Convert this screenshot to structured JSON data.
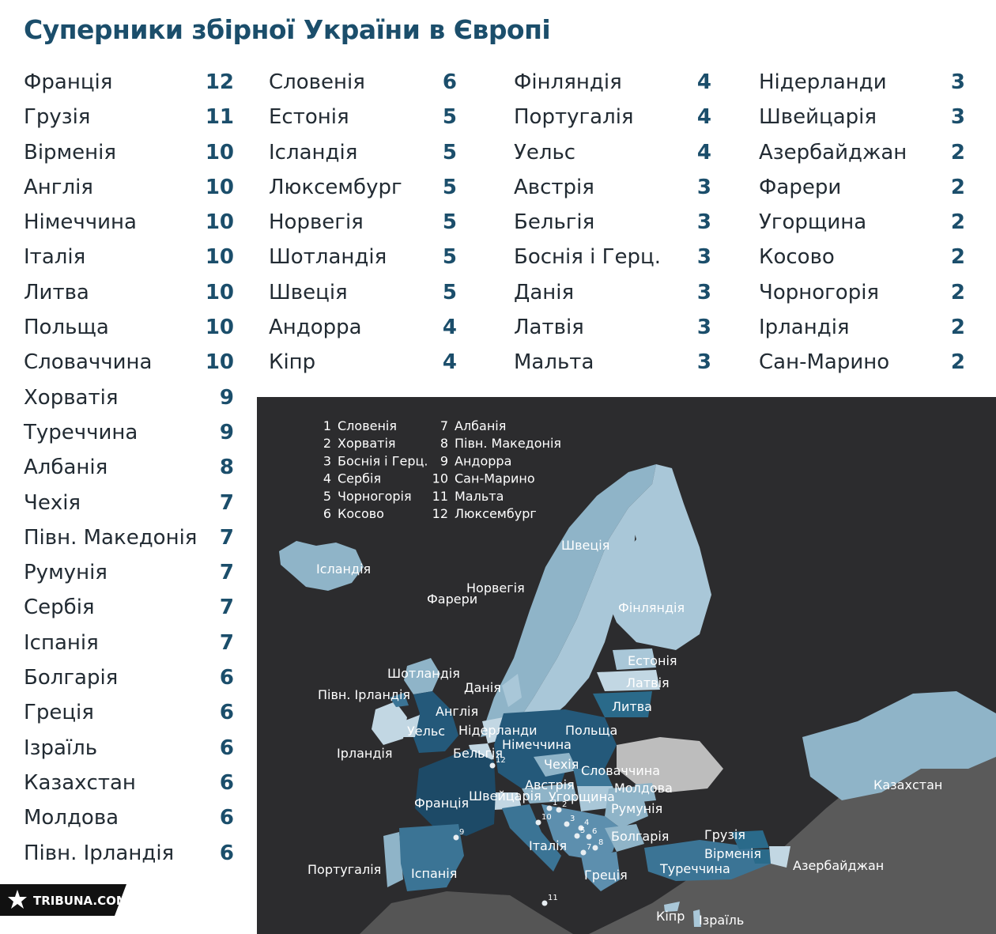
{
  "chart_data": {
    "type": "table",
    "title": "Суперники збірної України в Європі",
    "columns": [
      [
        {
          "name": "Франція",
          "value": 12
        },
        {
          "name": "Грузія",
          "value": 11
        },
        {
          "name": "Вірменія",
          "value": 10
        },
        {
          "name": "Англія",
          "value": 10
        },
        {
          "name": "Німеччина",
          "value": 10
        },
        {
          "name": "Італія",
          "value": 10
        },
        {
          "name": "Литва",
          "value": 10
        },
        {
          "name": "Польща",
          "value": 10
        },
        {
          "name": "Словаччина",
          "value": 10
        },
        {
          "name": "Хорватія",
          "value": 9
        },
        {
          "name": "Туреччина",
          "value": 9
        },
        {
          "name": "Албанія",
          "value": 8
        },
        {
          "name": "Чехія",
          "value": 7
        },
        {
          "name": "Півн. Македонія",
          "value": 7
        },
        {
          "name": "Румунія",
          "value": 7
        },
        {
          "name": "Сербія",
          "value": 7
        },
        {
          "name": "Іспанія",
          "value": 7
        },
        {
          "name": "Болгарія",
          "value": 6
        },
        {
          "name": "Греція",
          "value": 6
        },
        {
          "name": "Ізраїль",
          "value": 6
        },
        {
          "name": "Казахстан",
          "value": 6
        },
        {
          "name": "Молдова",
          "value": 6
        },
        {
          "name": "Півн. Ірландія",
          "value": 6
        }
      ],
      [
        {
          "name": "Словенія",
          "value": 6
        },
        {
          "name": "Естонія",
          "value": 5
        },
        {
          "name": "Ісландія",
          "value": 5
        },
        {
          "name": "Люксембург",
          "value": 5
        },
        {
          "name": "Норвегія",
          "value": 5
        },
        {
          "name": "Шотландія",
          "value": 5
        },
        {
          "name": "Швеція",
          "value": 5
        },
        {
          "name": "Андорра",
          "value": 4
        },
        {
          "name": "Кіпр",
          "value": 4
        }
      ],
      [
        {
          "name": "Фінляндія",
          "value": 4
        },
        {
          "name": "Португалія",
          "value": 4
        },
        {
          "name": "Уельс",
          "value": 4
        },
        {
          "name": "Австрія",
          "value": 3
        },
        {
          "name": "Бельгія",
          "value": 3
        },
        {
          "name": "Боснія і Герц.",
          "value": 3
        },
        {
          "name": "Данія",
          "value": 3
        },
        {
          "name": "Латвія",
          "value": 3
        },
        {
          "name": "Мальта",
          "value": 3
        }
      ],
      [
        {
          "name": "Нідерланди",
          "value": 3
        },
        {
          "name": "Швейцарія",
          "value": 3
        },
        {
          "name": "Азербайджан",
          "value": 2
        },
        {
          "name": "Фарери",
          "value": 2
        },
        {
          "name": "Угорщина",
          "value": 2
        },
        {
          "name": "Косово",
          "value": 2
        },
        {
          "name": "Чорногорія",
          "value": 2
        },
        {
          "name": "Ірландія",
          "value": 2
        },
        {
          "name": "Сан-Марино",
          "value": 2
        }
      ]
    ],
    "legend": [
      {
        "n": "1",
        "name": "Словенія"
      },
      {
        "n": "2",
        "name": "Хорватія"
      },
      {
        "n": "3",
        "name": "Боснія і Герц."
      },
      {
        "n": "4",
        "name": "Сербія"
      },
      {
        "n": "5",
        "name": "Чорногорія"
      },
      {
        "n": "6",
        "name": "Косово"
      },
      {
        "n": "7",
        "name": "Албанія"
      },
      {
        "n": "8",
        "name": "Півн. Македонія"
      },
      {
        "n": "9",
        "name": "Андорра"
      },
      {
        "n": "10",
        "name": "Сан-Марино"
      },
      {
        "n": "11",
        "name": "Мальта"
      },
      {
        "n": "12",
        "name": "Люксембург"
      }
    ]
  },
  "map": {
    "labels": [
      "Ісландія",
      "Фарери",
      "Норвегія",
      "Швеція",
      "Фінляндія",
      "Естонія",
      "Латвія",
      "Литва",
      "Шотландія",
      "Данія",
      "Півн. Ірландія",
      "Англія",
      "Уельс",
      "Ірландія",
      "Нідерланди",
      "Польща",
      "Німеччина",
      "Бельгія",
      "Чехія",
      "Словаччина",
      "Австрія",
      "Молдова",
      "Франція",
      "Швейцарія",
      "Угорщина",
      "Румунія",
      "Італія",
      "Болгарія",
      "Грузія",
      "Вірменія",
      "Азербайджан",
      "Казахстан",
      "Португалія",
      "Іспанія",
      "Греція",
      "Туреччина",
      "Кіпр",
      "Ізраїль"
    ],
    "markers": [
      "1",
      "2",
      "3",
      "4",
      "5",
      "6",
      "7",
      "8",
      "9",
      "10",
      "11",
      "12"
    ]
  },
  "colors": {
    "title": "#1b4e6b",
    "value": "#1b4e6b",
    "map_background": "#2c2c2e",
    "land_other": "#5a5a5a"
  },
  "logo": {
    "text": "TRIBUNA.COM"
  }
}
